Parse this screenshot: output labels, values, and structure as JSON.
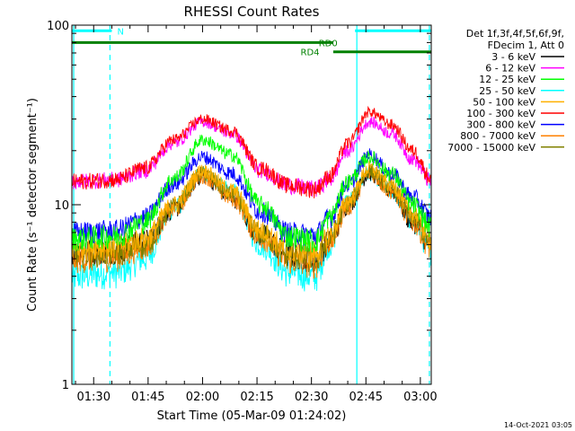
{
  "chart_data": {
    "type": "line",
    "title": "RHESSI Count Rates",
    "xlabel": "Start Time (05-Mar-09 01:24:02)",
    "ylabel": "Count Rate (s⁻¹ detector segment⁻¹)",
    "y_scale": "log",
    "ylim": [
      1,
      100
    ],
    "xlim_minutes": [
      84.0,
      183.0
    ],
    "y_ticks": [
      {
        "value": 1,
        "label": "1"
      },
      {
        "value": 10,
        "label": "10"
      },
      {
        "value": 100,
        "label": "100"
      }
    ],
    "x_ticks": [
      {
        "value": 90,
        "label": "01:30"
      },
      {
        "value": 105,
        "label": "01:45"
      },
      {
        "value": 120,
        "label": "02:00"
      },
      {
        "value": 135,
        "label": "02:15"
      },
      {
        "value": 150,
        "label": "02:30"
      },
      {
        "value": 165,
        "label": "02:45"
      },
      {
        "value": 180,
        "label": "03:00"
      }
    ],
    "legend_header": [
      "Det 1f,3f,4f,5f,6f,9f,",
      "FDecim 1, Att 0"
    ],
    "legend_position": "right",
    "timestamp": "14-Oct-2021 03:05",
    "x_time_minutes": [
      84,
      96,
      104,
      112,
      120,
      128,
      136,
      144,
      151,
      155,
      160,
      166,
      172,
      178,
      183
    ],
    "series": [
      {
        "name": "3 - 6 keV",
        "color": "#000000",
        "values": [
          5.5,
          5.6,
          6.3,
          9.5,
          14.5,
          11,
          6.8,
          5.3,
          5.0,
          6.3,
          10,
          15,
          12,
          8,
          6.0
        ]
      },
      {
        "name": "6 - 12 keV",
        "color": "#ff00ff",
        "values": [
          13.5,
          13.8,
          15.5,
          22,
          29,
          25,
          15.5,
          12.8,
          12.3,
          13.8,
          20,
          29,
          25,
          18,
          13.5
        ]
      },
      {
        "name": "12 - 25 keV",
        "color": "#00ff00",
        "values": [
          6.5,
          6.7,
          8.0,
          14,
          23,
          19,
          10,
          6.7,
          6.3,
          8.5,
          13.5,
          18.5,
          15,
          10,
          7.5
        ]
      },
      {
        "name": "25 - 50 keV",
        "color": "#00ffff",
        "values": [
          4.0,
          4.2,
          5.0,
          9.5,
          15,
          12,
          6.0,
          4.2,
          4.0,
          6.0,
          10.5,
          15,
          12,
          8,
          5.5
        ]
      },
      {
        "name": "50 - 100 keV",
        "color": "#ffb000",
        "values": [
          5.8,
          5.9,
          6.5,
          10,
          15.5,
          12,
          7.2,
          5.6,
          5.4,
          6.8,
          10.5,
          16,
          13,
          9,
          6.5
        ]
      },
      {
        "name": "100 - 300 keV",
        "color": "#ff0000",
        "values": [
          13.5,
          13.8,
          16,
          23,
          30,
          26,
          16,
          12.8,
          12.2,
          14.5,
          22,
          33,
          28,
          20,
          14
        ]
      },
      {
        "name": "300 - 800 keV",
        "color": "#0000ff",
        "values": [
          7.0,
          7.2,
          8.5,
          13,
          18.5,
          15,
          9.2,
          7.0,
          6.8,
          8.5,
          13,
          19,
          15,
          11,
          8.5
        ]
      },
      {
        "name": "800 - 7000 keV",
        "color": "#ff8000",
        "values": [
          5.0,
          5.1,
          5.8,
          9.5,
          14.5,
          11,
          6.6,
          4.9,
          4.7,
          6.2,
          9.8,
          15,
          12,
          8,
          5.8
        ]
      },
      {
        "name": "7000 - 15000 keV",
        "color": "#808000",
        "values": [
          5.3,
          5.4,
          6.0,
          9.8,
          15,
          11.5,
          6.9,
          5.2,
          5.0,
          6.5,
          10.2,
          15.5,
          12.5,
          8.5,
          6.2
        ]
      }
    ],
    "flag_bars": [
      {
        "label": "N",
        "color": "#00ffff",
        "value": 93,
        "segments": [
          [
            84,
            95
          ],
          [
            162,
            183
          ]
        ]
      },
      {
        "label": "RD0",
        "color": "#008000",
        "value": 80,
        "segments": [
          [
            84,
            156
          ]
        ]
      },
      {
        "label": "RD4",
        "color": "#008000",
        "value": 71,
        "segments": [
          [
            156,
            183
          ]
        ]
      }
    ],
    "vertical_markers": [
      {
        "value": 84.5,
        "color": "#00ffff",
        "style": "solid"
      },
      {
        "value": 94.5,
        "color": "#00ffff",
        "style": "dashed"
      },
      {
        "value": 162.5,
        "color": "#00ffff",
        "style": "solid"
      },
      {
        "value": 182.5,
        "color": "#00ffff",
        "style": "dashed"
      }
    ]
  }
}
